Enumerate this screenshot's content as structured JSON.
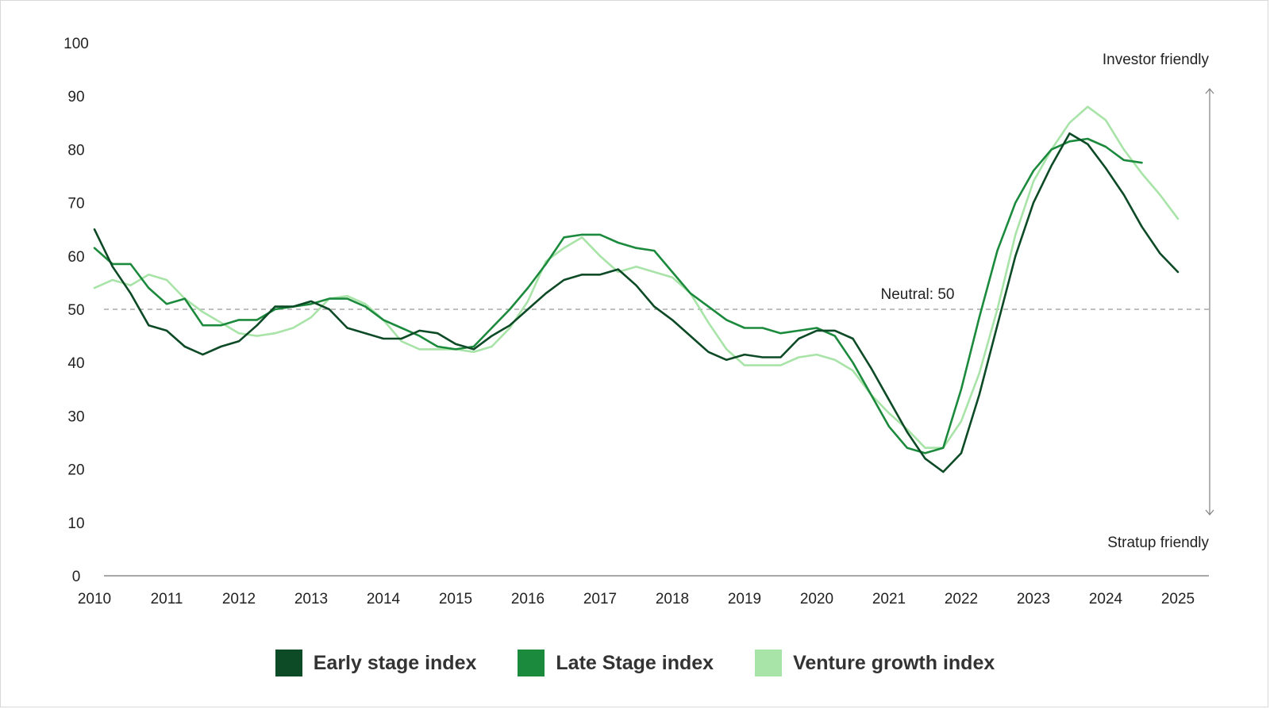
{
  "chart_data": {
    "type": "line",
    "title": "",
    "xlabel": "",
    "ylabel": "",
    "ylim": [
      0,
      100
    ],
    "xlim": [
      2010,
      2025
    ],
    "yticks": [
      "100",
      "90",
      "80",
      "70",
      "60",
      "50",
      "40",
      "30",
      "20",
      "10",
      "0"
    ],
    "xticks": [
      "2010",
      "2011",
      "2012",
      "2013",
      "2014",
      "2015",
      "2016",
      "2017",
      "2018",
      "2019",
      "2020",
      "2021",
      "2022",
      "2023",
      "2024",
      "2025"
    ],
    "reference_line": {
      "value": 50,
      "label": "Neutral: 50"
    },
    "annotations": {
      "top": "Investor friendly",
      "bottom": "Stratup friendly"
    },
    "legend_position": "bottom",
    "series": [
      {
        "name": "Early stage index",
        "color": "#0d4a26",
        "points": [
          [
            2010.0,
            65
          ],
          [
            2010.25,
            58
          ],
          [
            2010.5,
            53
          ],
          [
            2010.75,
            47
          ],
          [
            2011.0,
            46
          ],
          [
            2011.25,
            43
          ],
          [
            2011.5,
            41.5
          ],
          [
            2011.75,
            43
          ],
          [
            2012.0,
            44
          ],
          [
            2012.25,
            47
          ],
          [
            2012.5,
            50.5
          ],
          [
            2012.75,
            50.5
          ],
          [
            2013.0,
            51.5
          ],
          [
            2013.25,
            50
          ],
          [
            2013.5,
            46.5
          ],
          [
            2013.75,
            45.5
          ],
          [
            2014.0,
            44.5
          ],
          [
            2014.25,
            44.5
          ],
          [
            2014.5,
            46
          ],
          [
            2014.75,
            45.5
          ],
          [
            2015.0,
            43.5
          ],
          [
            2015.25,
            42.5
          ],
          [
            2015.5,
            45
          ],
          [
            2015.75,
            47
          ],
          [
            2016.0,
            50
          ],
          [
            2016.25,
            53
          ],
          [
            2016.5,
            55.5
          ],
          [
            2016.75,
            56.5
          ],
          [
            2017.0,
            56.5
          ],
          [
            2017.25,
            57.5
          ],
          [
            2017.5,
            54.5
          ],
          [
            2017.75,
            50.5
          ],
          [
            2018.0,
            48
          ],
          [
            2018.25,
            45
          ],
          [
            2018.5,
            42
          ],
          [
            2018.75,
            40.5
          ],
          [
            2019.0,
            41.5
          ],
          [
            2019.25,
            41
          ],
          [
            2019.5,
            41
          ],
          [
            2019.75,
            44.5
          ],
          [
            2020.0,
            46
          ],
          [
            2020.25,
            46
          ],
          [
            2020.5,
            44.5
          ],
          [
            2020.75,
            39
          ],
          [
            2021.0,
            33
          ],
          [
            2021.25,
            27
          ],
          [
            2021.5,
            22
          ],
          [
            2021.75,
            19.5
          ],
          [
            2022.0,
            23
          ],
          [
            2022.25,
            34
          ],
          [
            2022.5,
            47
          ],
          [
            2022.75,
            60
          ],
          [
            2023.0,
            70
          ],
          [
            2023.25,
            77
          ],
          [
            2023.5,
            83
          ],
          [
            2023.75,
            81
          ],
          [
            2024.0,
            76.5
          ],
          [
            2024.25,
            71.5
          ],
          [
            2024.5,
            65.5
          ],
          [
            2024.75,
            60.5
          ],
          [
            2025.0,
            57
          ]
        ]
      },
      {
        "name": "Late Stage index",
        "color": "#1c8a3d",
        "points": [
          [
            2010.0,
            61.5
          ],
          [
            2010.25,
            58.5
          ],
          [
            2010.5,
            58.5
          ],
          [
            2010.75,
            54
          ],
          [
            2011.0,
            51
          ],
          [
            2011.25,
            52
          ],
          [
            2011.5,
            47
          ],
          [
            2011.75,
            47
          ],
          [
            2012.0,
            48
          ],
          [
            2012.25,
            48
          ],
          [
            2012.5,
            50
          ],
          [
            2012.75,
            50.5
          ],
          [
            2013.0,
            51
          ],
          [
            2013.25,
            52
          ],
          [
            2013.5,
            52
          ],
          [
            2013.75,
            50.5
          ],
          [
            2014.0,
            48
          ],
          [
            2014.25,
            46.5
          ],
          [
            2014.5,
            45
          ],
          [
            2014.75,
            43
          ],
          [
            2015.0,
            42.5
          ],
          [
            2015.25,
            43
          ],
          [
            2015.5,
            46.5
          ],
          [
            2015.75,
            50
          ],
          [
            2016.0,
            54
          ],
          [
            2016.25,
            58.5
          ],
          [
            2016.5,
            63.5
          ],
          [
            2016.75,
            64
          ],
          [
            2017.0,
            64
          ],
          [
            2017.25,
            62.5
          ],
          [
            2017.5,
            61.5
          ],
          [
            2017.75,
            61
          ],
          [
            2018.0,
            57
          ],
          [
            2018.25,
            53
          ],
          [
            2018.5,
            50.5
          ],
          [
            2018.75,
            48
          ],
          [
            2019.0,
            46.5
          ],
          [
            2019.25,
            46.5
          ],
          [
            2019.5,
            45.5
          ],
          [
            2019.75,
            46
          ],
          [
            2020.0,
            46.5
          ],
          [
            2020.25,
            45
          ],
          [
            2020.5,
            40
          ],
          [
            2020.75,
            34
          ],
          [
            2021.0,
            28
          ],
          [
            2021.25,
            24
          ],
          [
            2021.5,
            23
          ],
          [
            2021.75,
            24
          ],
          [
            2022.0,
            35
          ],
          [
            2022.25,
            48.5
          ],
          [
            2022.5,
            61
          ],
          [
            2022.75,
            70
          ],
          [
            2023.0,
            76
          ],
          [
            2023.25,
            80
          ],
          [
            2023.5,
            81.5
          ],
          [
            2023.75,
            82
          ],
          [
            2024.0,
            80.5
          ],
          [
            2024.25,
            78
          ],
          [
            2024.5,
            77.5
          ]
        ]
      },
      {
        "name": "Venture growth index",
        "color": "#a8e3a8",
        "points": [
          [
            2010.0,
            54
          ],
          [
            2010.25,
            55.5
          ],
          [
            2010.5,
            54.5
          ],
          [
            2010.75,
            56.5
          ],
          [
            2011.0,
            55.5
          ],
          [
            2011.25,
            52
          ],
          [
            2011.5,
            49.5
          ],
          [
            2011.75,
            47.5
          ],
          [
            2012.0,
            45.5
          ],
          [
            2012.25,
            45
          ],
          [
            2012.5,
            45.5
          ],
          [
            2012.75,
            46.5
          ],
          [
            2013.0,
            48.5
          ],
          [
            2013.25,
            52
          ],
          [
            2013.5,
            52.5
          ],
          [
            2013.75,
            51
          ],
          [
            2014.0,
            48
          ],
          [
            2014.25,
            44
          ],
          [
            2014.5,
            42.5
          ],
          [
            2014.75,
            42.5
          ],
          [
            2015.0,
            42.5
          ],
          [
            2015.25,
            42
          ],
          [
            2015.5,
            43
          ],
          [
            2015.75,
            46.5
          ],
          [
            2016.0,
            51.5
          ],
          [
            2016.25,
            59
          ],
          [
            2016.5,
            61.5
          ],
          [
            2016.75,
            63.5
          ],
          [
            2017.0,
            60
          ],
          [
            2017.25,
            57
          ],
          [
            2017.5,
            58
          ],
          [
            2017.75,
            57
          ],
          [
            2018.0,
            56
          ],
          [
            2018.25,
            53
          ],
          [
            2018.5,
            47.5
          ],
          [
            2018.75,
            42.5
          ],
          [
            2019.0,
            39.5
          ],
          [
            2019.25,
            39.5
          ],
          [
            2019.5,
            39.5
          ],
          [
            2019.75,
            41
          ],
          [
            2020.0,
            41.5
          ],
          [
            2020.25,
            40.5
          ],
          [
            2020.5,
            38.5
          ],
          [
            2020.75,
            34
          ],
          [
            2021.0,
            30.5
          ],
          [
            2021.25,
            27.5
          ],
          [
            2021.5,
            24
          ],
          [
            2021.75,
            24
          ],
          [
            2022.0,
            29
          ],
          [
            2022.25,
            38
          ],
          [
            2022.5,
            50
          ],
          [
            2022.75,
            64
          ],
          [
            2023.0,
            74
          ],
          [
            2023.25,
            80
          ],
          [
            2023.5,
            85
          ],
          [
            2023.75,
            88
          ],
          [
            2024.0,
            85.5
          ],
          [
            2024.25,
            80
          ],
          [
            2024.5,
            75.5
          ],
          [
            2024.75,
            71.5
          ],
          [
            2025.0,
            67
          ]
        ]
      }
    ]
  }
}
